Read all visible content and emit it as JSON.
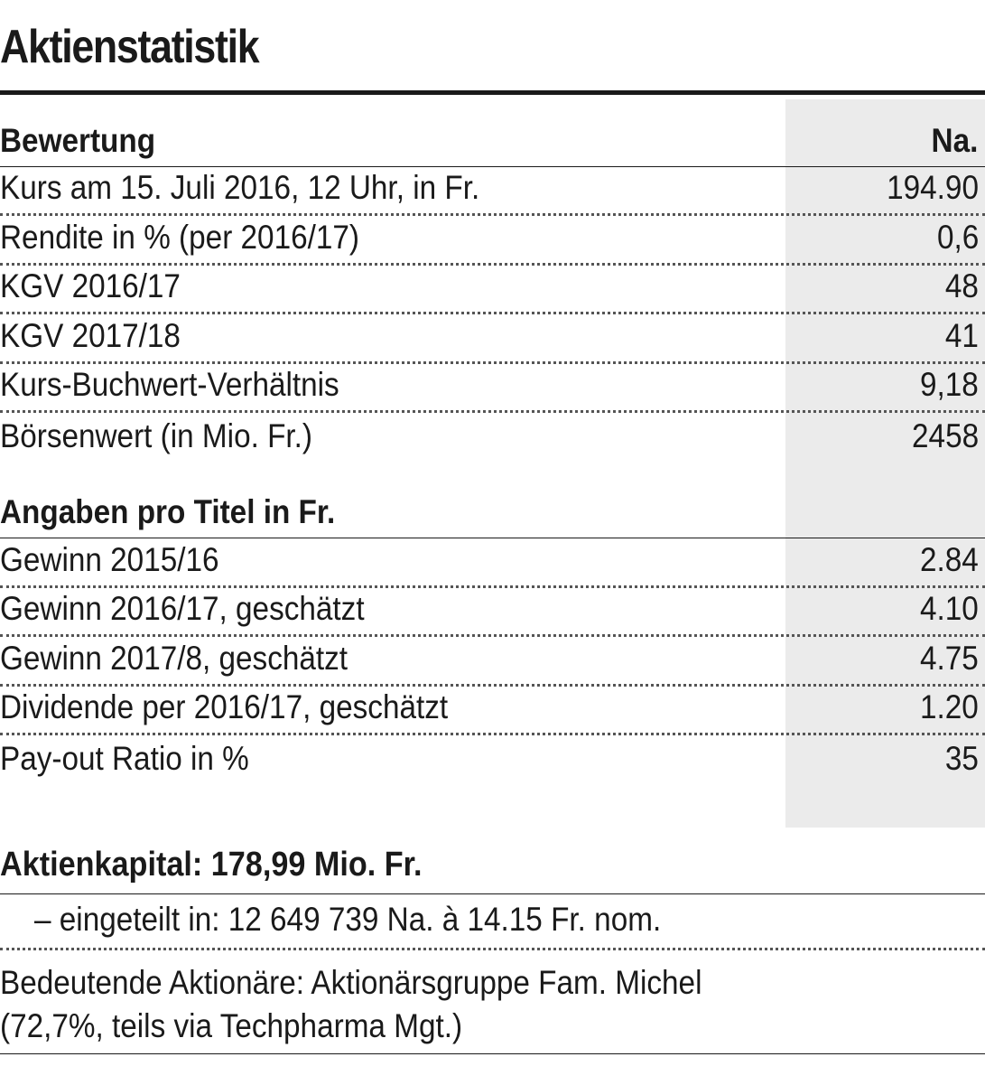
{
  "title": "Aktienstatistik",
  "section_valuation": {
    "heading": "Bewertung",
    "column_label": "Na.",
    "rows": [
      {
        "label": "Kurs am 15. Juli 2016, 12 Uhr, in Fr.",
        "value": "194.90"
      },
      {
        "label": "Rendite in % (per 2016/17)",
        "value": "0,6"
      },
      {
        "label": "KGV 2016/17",
        "value": "48"
      },
      {
        "label": "KGV 2017/18",
        "value": "41"
      },
      {
        "label": "Kurs-Buchwert-Verhältnis",
        "value": "9,18"
      },
      {
        "label": "Börsenwert (in Mio. Fr.)",
        "value": "2458"
      }
    ]
  },
  "section_per_share": {
    "heading": "Angaben pro Titel in Fr.",
    "rows": [
      {
        "label": "Gewinn 2015/16",
        "value": "2.84"
      },
      {
        "label": "Gewinn 2016/17, geschätzt",
        "value": "4.10"
      },
      {
        "label": "Gewinn 2017/8, geschätzt",
        "value": "4.75"
      },
      {
        "label": "Dividende per 2016/17, geschätzt",
        "value": "1.20"
      },
      {
        "label": "Pay-out Ratio in %",
        "value": "35"
      }
    ]
  },
  "capital": {
    "heading": "Aktienkapital: 178,99 Mio. Fr.",
    "subdivision": "– eingeteilt in: 12 649 739 Na. à 14.15 Fr. nom.",
    "holders_line1": "Bedeutende Aktionäre: Aktionärsgruppe Fam. Michel",
    "holders_line2": "(72,7%, teils via Techpharma Mgt.)"
  }
}
